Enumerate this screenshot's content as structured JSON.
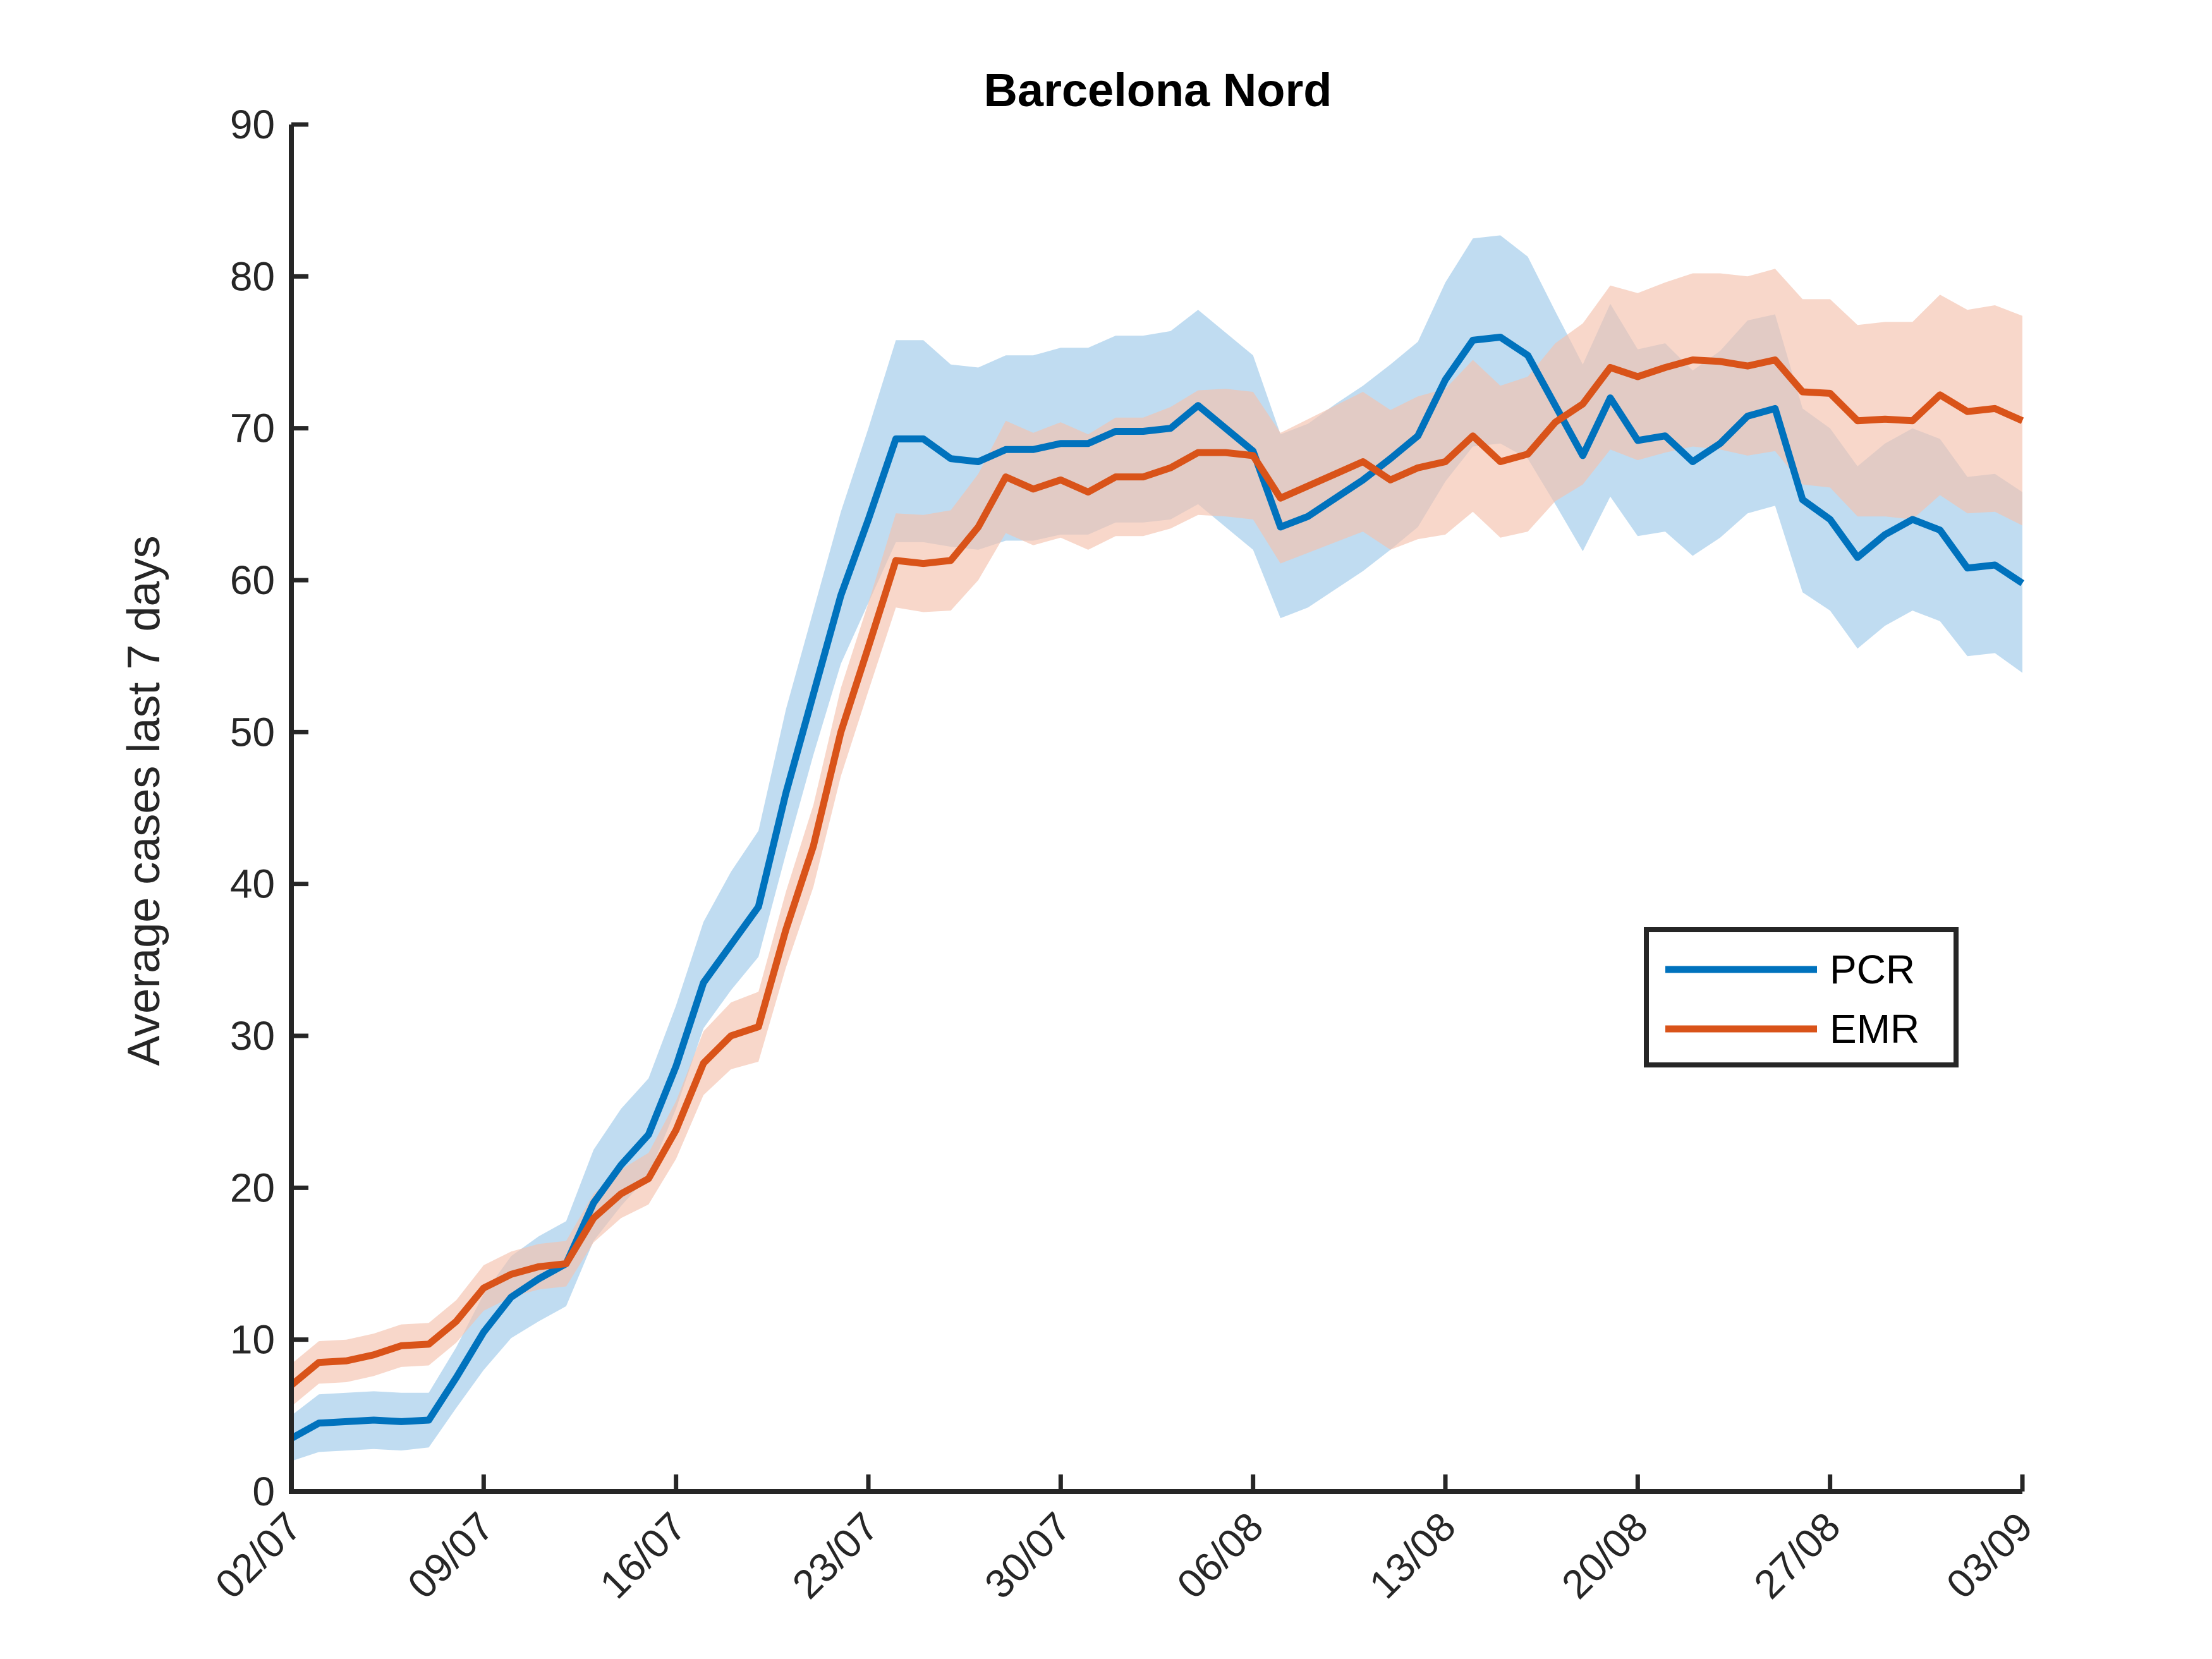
{
  "chart_data": {
    "type": "line",
    "title": "Barcelona Nord",
    "xlabel": "",
    "ylabel": "Average cases last 7 days",
    "ylim": [
      0,
      90
    ],
    "yticks": [
      0,
      10,
      20,
      30,
      40,
      50,
      60,
      70,
      80,
      90
    ],
    "x_start": "02/07",
    "x_end": "03/09",
    "num_days": 64,
    "xticks": [
      {
        "day": 0,
        "label": "02/07"
      },
      {
        "day": 7,
        "label": "09/07"
      },
      {
        "day": 14,
        "label": "16/07"
      },
      {
        "day": 21,
        "label": "23/07"
      },
      {
        "day": 28,
        "label": "30/07"
      },
      {
        "day": 35,
        "label": "06/08"
      },
      {
        "day": 42,
        "label": "13/08"
      },
      {
        "day": 49,
        "label": "20/08"
      },
      {
        "day": 56,
        "label": "27/08"
      },
      {
        "day": 63,
        "label": "03/09"
      }
    ],
    "legend": {
      "position": "right"
    },
    "grid": false,
    "series": [
      {
        "name": "PCR",
        "color": "#0072BD",
        "band_color": "#9ECAE9",
        "values": [
          3.5,
          4.5,
          4.6,
          4.7,
          4.6,
          4.7,
          7.5,
          10.5,
          12.8,
          14.0,
          15.0,
          19.0,
          21.5,
          23.5,
          28.0,
          33.5,
          36.0,
          38.5,
          46.0,
          52.5,
          59.0,
          64.0,
          69.3,
          69.3,
          68.0,
          67.8,
          68.6,
          68.6,
          69.0,
          69.0,
          69.8,
          69.8,
          70.0,
          71.5,
          70.0,
          68.5,
          63.5,
          64.2,
          65.4,
          66.6,
          68.0,
          69.5,
          73.2,
          75.8,
          76.0,
          74.8,
          71.5,
          68.2,
          72.0,
          69.2,
          69.5,
          67.8,
          69.0,
          70.8,
          71.3,
          65.3,
          64.0,
          61.5,
          63.0,
          64.0,
          63.3,
          60.8,
          61.0,
          59.8
        ],
        "lower": [
          2.0,
          2.6,
          2.7,
          2.8,
          2.7,
          2.9,
          5.5,
          8.0,
          10.1,
          11.2,
          12.2,
          16.5,
          18.8,
          20.8,
          25.2,
          30.5,
          33.0,
          35.2,
          42.0,
          48.5,
          54.5,
          58.5,
          62.5,
          62.5,
          62.2,
          62.0,
          62.6,
          62.6,
          63.0,
          63.0,
          63.8,
          63.8,
          64.0,
          65.0,
          63.5,
          62.0,
          57.5,
          58.2,
          59.4,
          60.6,
          62.0,
          63.5,
          66.5,
          68.8,
          69.0,
          68.0,
          65.0,
          61.9,
          65.5,
          62.9,
          63.2,
          61.6,
          62.8,
          64.4,
          64.9,
          59.2,
          58.0,
          55.5,
          57.0,
          58.0,
          57.3,
          55.0,
          55.2,
          53.9
        ],
        "upper": [
          5.0,
          6.4,
          6.5,
          6.6,
          6.5,
          6.5,
          9.5,
          13.0,
          15.5,
          16.8,
          17.8,
          22.5,
          25.2,
          27.2,
          32.0,
          37.5,
          40.8,
          43.5,
          51.5,
          58.0,
          64.5,
          70.0,
          75.8,
          75.8,
          74.2,
          74.0,
          74.8,
          74.8,
          75.3,
          75.3,
          76.1,
          76.1,
          76.4,
          77.8,
          76.3,
          74.8,
          69.6,
          70.3,
          71.6,
          72.8,
          74.2,
          75.7,
          79.6,
          82.5,
          82.7,
          81.3,
          77.7,
          74.2,
          78.2,
          75.2,
          75.6,
          73.8,
          75.1,
          77.1,
          77.5,
          71.3,
          70.0,
          67.5,
          69.0,
          70.0,
          69.3,
          66.8,
          67.0,
          65.8
        ]
      },
      {
        "name": "EMR",
        "color": "#D95319",
        "band_color": "#F4C1AD",
        "values": [
          7.0,
          8.5,
          8.6,
          9.0,
          9.6,
          9.7,
          11.2,
          13.4,
          14.3,
          14.8,
          15.0,
          18.0,
          19.6,
          20.6,
          23.8,
          28.2,
          30.0,
          30.6,
          37.0,
          42.5,
          50.0,
          55.6,
          61.3,
          61.1,
          61.3,
          63.5,
          66.8,
          66.0,
          66.6,
          65.8,
          66.8,
          66.8,
          67.4,
          68.4,
          68.4,
          68.2,
          65.4,
          66.2,
          67.0,
          67.8,
          66.6,
          67.4,
          67.8,
          69.5,
          67.8,
          68.3,
          70.4,
          71.6,
          74.0,
          73.4,
          74.0,
          74.5,
          74.4,
          74.1,
          74.5,
          72.4,
          72.3,
          70.5,
          70.6,
          70.5,
          72.2,
          71.1,
          71.3,
          70.5
        ],
        "lower": [
          5.6,
          7.1,
          7.2,
          7.6,
          8.2,
          8.3,
          9.8,
          11.9,
          12.8,
          13.3,
          13.5,
          16.4,
          18.0,
          18.9,
          21.9,
          26.1,
          27.8,
          28.3,
          34.5,
          39.8,
          47.1,
          52.7,
          58.2,
          57.9,
          58.0,
          60.0,
          63.1,
          62.3,
          62.8,
          62.0,
          62.9,
          62.9,
          63.4,
          64.3,
          64.2,
          64.0,
          61.1,
          61.8,
          62.5,
          63.2,
          62.0,
          62.7,
          63.0,
          64.5,
          62.8,
          63.2,
          65.2,
          66.3,
          68.6,
          67.9,
          68.4,
          68.8,
          68.6,
          68.2,
          68.5,
          66.3,
          66.1,
          64.2,
          64.2,
          64.0,
          65.6,
          64.4,
          64.5,
          63.6
        ],
        "upper": [
          8.4,
          9.9,
          10.0,
          10.4,
          11.0,
          11.1,
          12.6,
          14.9,
          15.8,
          16.3,
          16.5,
          19.6,
          21.2,
          22.3,
          25.7,
          30.3,
          32.2,
          32.9,
          39.5,
          45.2,
          52.9,
          58.5,
          64.4,
          64.3,
          64.6,
          67.0,
          70.5,
          69.7,
          70.4,
          69.6,
          70.7,
          70.7,
          71.4,
          72.5,
          72.6,
          72.4,
          69.7,
          70.6,
          71.5,
          72.4,
          71.2,
          72.1,
          72.6,
          74.5,
          72.8,
          73.4,
          75.6,
          76.9,
          79.4,
          78.9,
          79.6,
          80.2,
          80.2,
          80.0,
          80.5,
          78.5,
          78.5,
          76.8,
          77.0,
          77.0,
          78.8,
          77.8,
          78.1,
          77.4
        ]
      }
    ]
  }
}
